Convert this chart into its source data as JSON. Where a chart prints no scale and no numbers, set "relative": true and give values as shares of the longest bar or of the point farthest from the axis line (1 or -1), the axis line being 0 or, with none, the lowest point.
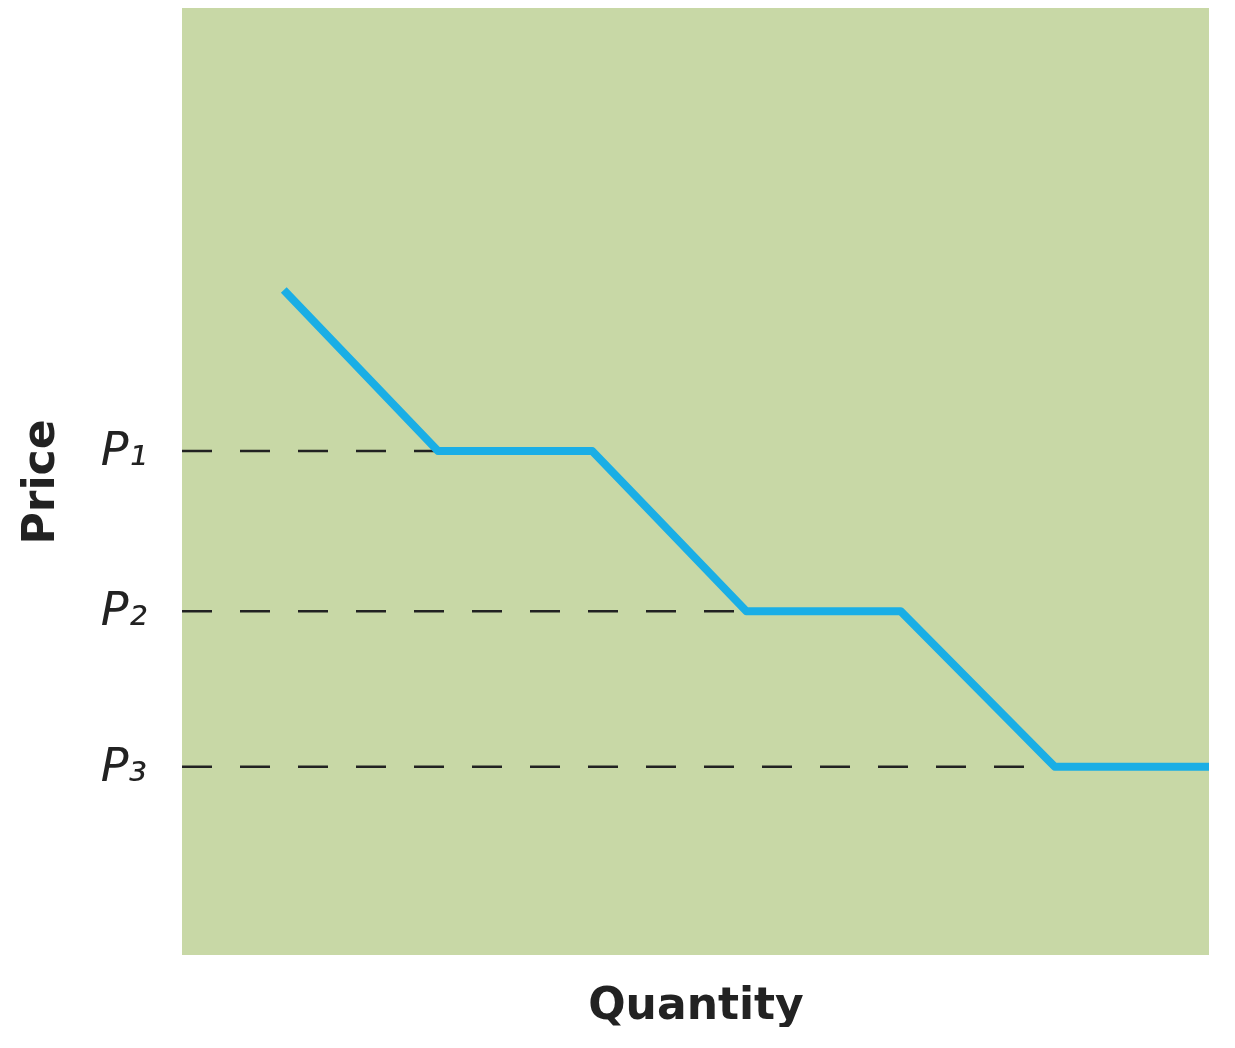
{
  "chart_data": {
    "type": "line",
    "relative": true,
    "xlabel": "Quantity",
    "ylabel": "Price",
    "tick_labels": false,
    "grid": false,
    "categories": [
      null,
      null,
      null,
      null,
      null,
      null,
      null
    ],
    "series": [
      {
        "color": "#1aaee5",
        "values": [
          1,
          0.758,
          0.758,
          0.517,
          0.517,
          0.283,
          0.283
        ]
      }
    ],
    "ref_lines": [
      {
        "axis": "y",
        "value": 0.758,
        "label": "P₁",
        "line_style": "dashed",
        "color": "#222222"
      },
      {
        "axis": "y",
        "value": 0.517,
        "label": "P₂",
        "line_style": "dashed",
        "color": "#222222"
      },
      {
        "axis": "y",
        "value": 0.283,
        "label": "P₃",
        "line_style": "dashed",
        "color": "#222222"
      }
    ]
  }
}
